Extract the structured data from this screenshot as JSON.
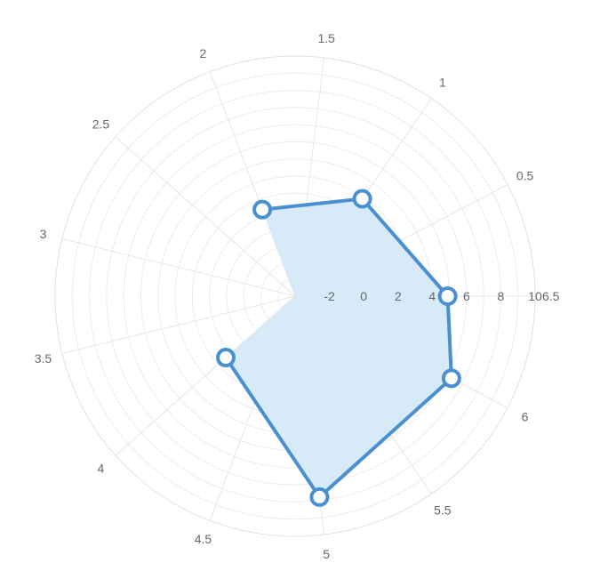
{
  "chart_data": {
    "type": "polar-area-line",
    "angle_axis": {
      "unit_max": 6.5,
      "ticks": [
        0.5,
        1,
        1.5,
        2,
        2.5,
        3,
        3.5,
        4,
        4.5,
        5,
        5.5,
        6,
        6.5
      ],
      "tick_labels": [
        "0.5",
        "1",
        "1.5",
        "2",
        "2.5",
        "3",
        "3.5",
        "4",
        "4.5",
        "5",
        "5.5",
        "6",
        "6.5"
      ]
    },
    "radial_axis": {
      "min": -4,
      "max": 10,
      "ticks": [
        -2,
        0,
        2,
        4,
        6,
        8,
        10
      ],
      "tick_labels": [
        "-2",
        "0",
        "2",
        "4",
        "6",
        "8",
        "10"
      ]
    },
    "grid": true,
    "series": [
      {
        "points": [
          {
            "theta": 0,
            "r": 4.9
          },
          {
            "theta": 1,
            "r": 2.9
          },
          {
            "theta": 2,
            "r": 1.4
          },
          {
            "theta": 3,
            "r": -4
          },
          {
            "theta": 4,
            "r": 1.4
          },
          {
            "theta": 5,
            "r": 7.8
          },
          {
            "theta": 6,
            "r": 6.3
          },
          {
            "theta": 0,
            "r": 4.9
          }
        ],
        "line_color": "#4a90d0",
        "fill_color": "#d6eaf8"
      }
    ]
  }
}
